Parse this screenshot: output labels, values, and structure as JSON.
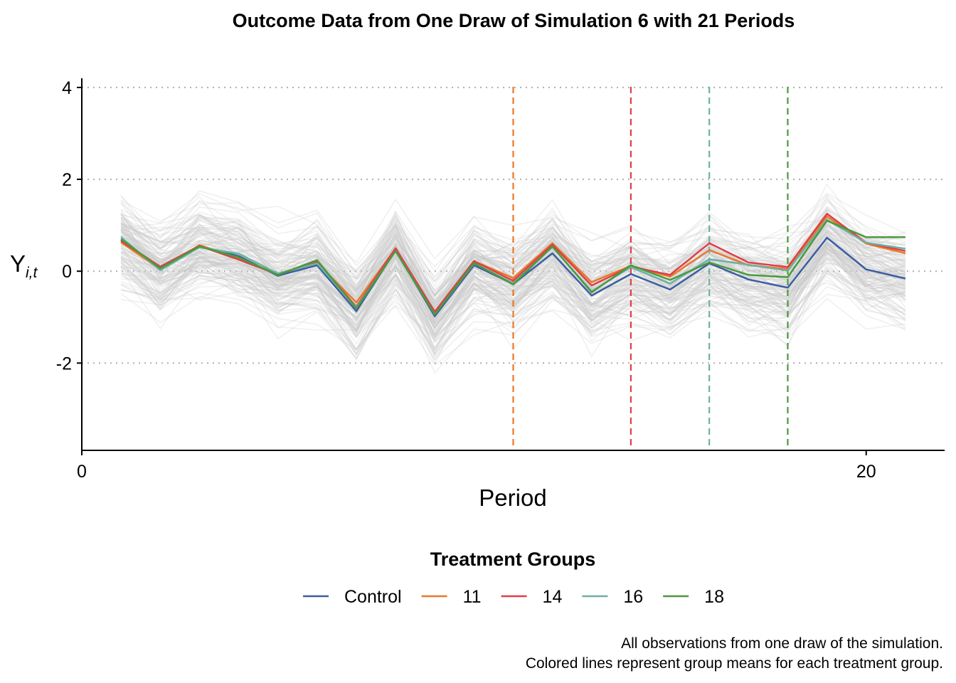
{
  "chart_data": {
    "type": "line",
    "title": "Outcome Data from One Draw of Simulation 6 with 21 Periods",
    "xlabel": "Period",
    "ylabel": "Y",
    "ylabel_subscript": "i,t",
    "xlim": [
      0,
      22
    ],
    "ylim": [
      -3.9,
      4.2
    ],
    "x_ticks": [
      0,
      20
    ],
    "y_ticks": [
      4,
      2,
      0,
      -2
    ],
    "y_tick_labels": [
      "4",
      "2",
      "0",
      "-2"
    ],
    "grid": "horizontal dotted",
    "x": [
      1,
      2,
      3,
      4,
      5,
      6,
      7,
      8,
      9,
      10,
      11,
      12,
      13,
      14,
      15,
      16,
      17,
      18,
      19,
      20,
      21
    ],
    "series": [
      {
        "name": "Control",
        "color": "#3b5ea3",
        "values": [
          0.67,
          0.07,
          0.55,
          0.33,
          -0.1,
          0.13,
          -0.87,
          0.46,
          -0.98,
          0.13,
          -0.28,
          0.39,
          -0.53,
          -0.06,
          -0.4,
          0.17,
          -0.18,
          -0.36,
          0.73,
          0.04,
          -0.16
        ]
      },
      {
        "name": "11",
        "color": "#e8782a",
        "values": [
          0.63,
          0.04,
          0.57,
          0.28,
          -0.06,
          0.18,
          -0.68,
          0.49,
          -0.9,
          0.22,
          -0.15,
          0.61,
          -0.24,
          0.12,
          -0.12,
          0.46,
          0.13,
          0.05,
          1.19,
          0.6,
          0.39
        ]
      },
      {
        "name": "14",
        "color": "#e03f45",
        "values": [
          0.66,
          0.1,
          0.55,
          0.25,
          -0.07,
          0.2,
          -0.77,
          0.5,
          -0.88,
          0.22,
          -0.21,
          0.58,
          -0.31,
          0.1,
          -0.08,
          0.61,
          0.19,
          0.09,
          1.25,
          0.62,
          0.44
        ]
      },
      {
        "name": "16",
        "color": "#6cb1a5",
        "values": [
          0.74,
          0.02,
          0.52,
          0.38,
          -0.05,
          0.17,
          -0.79,
          0.44,
          -0.94,
          0.17,
          -0.26,
          0.53,
          -0.44,
          0.09,
          -0.27,
          0.26,
          0.14,
          0.01,
          1.12,
          0.62,
          0.49
        ]
      },
      {
        "name": "18",
        "color": "#4a9a3d",
        "values": [
          0.7,
          0.06,
          0.54,
          0.3,
          -0.08,
          0.24,
          -0.81,
          0.44,
          -0.94,
          0.18,
          -0.29,
          0.54,
          -0.46,
          0.13,
          -0.19,
          0.19,
          -0.08,
          -0.13,
          1.1,
          0.74,
          0.74
        ]
      }
    ],
    "treatment_lines": [
      {
        "x": 11,
        "color": "#e8782a"
      },
      {
        "x": 14,
        "color": "#e03f45"
      },
      {
        "x": 16,
        "color": "#6cb1a5"
      },
      {
        "x": 18,
        "color": "#4a9a3d"
      }
    ],
    "background_observations": "many grey individual trajectories (one per unit), not individually labeled",
    "legend": {
      "title": "Treatment Groups",
      "position": "bottom",
      "entries": [
        "Control",
        "11",
        "14",
        "16",
        "18"
      ]
    },
    "caption": [
      "All observations from one draw of the simulation.",
      "Colored lines represent group means for each treatment group."
    ]
  }
}
